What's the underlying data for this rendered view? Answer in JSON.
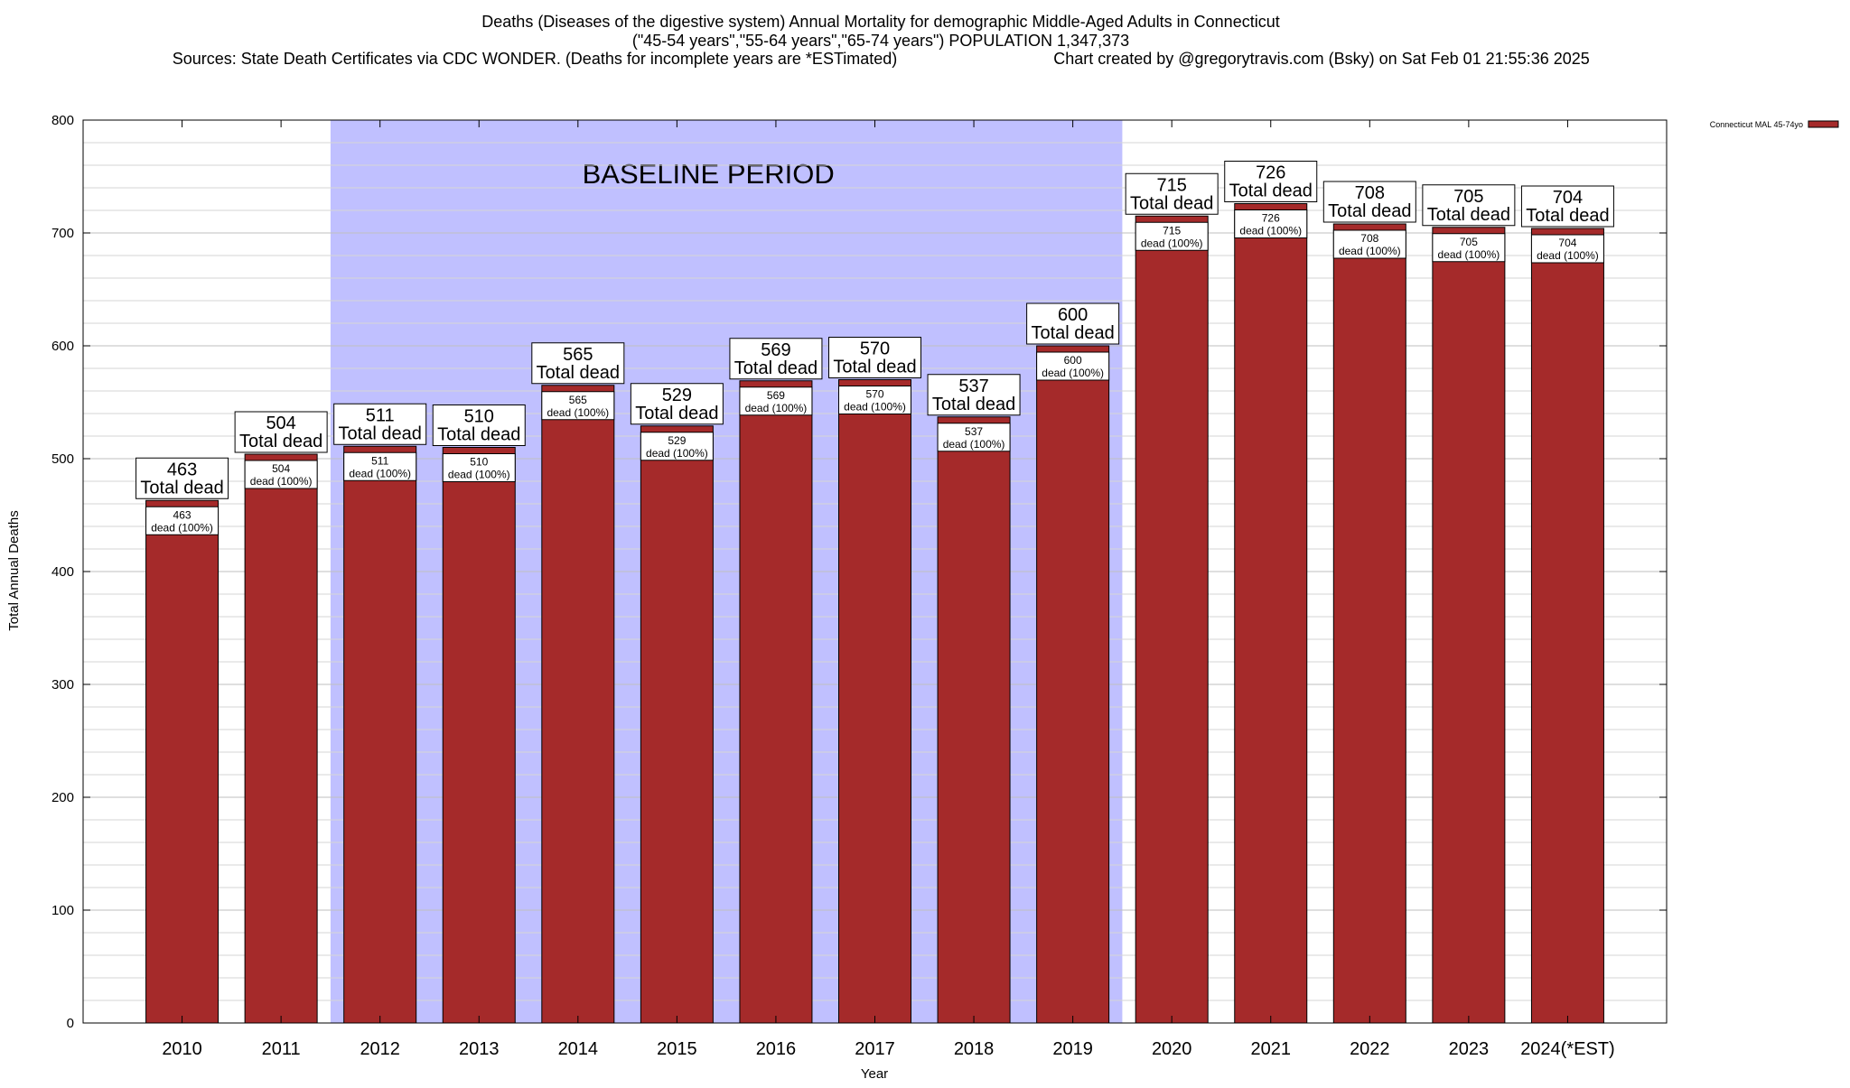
{
  "chart_data": {
    "type": "bar",
    "title_lines": [
      "Deaths (Diseases of the digestive system) Annual Mortality for demographic Middle-Aged Adults in Connecticut",
      "(\"45-54 years\",\"55-64 years\",\"65-74 years\") POPULATION 1,347,373"
    ],
    "sources": "Sources: State Death Certificates via CDC WONDER. (Deaths for incomplete years are *ESTimated)",
    "credit": "Chart created by @gregorytravis.com (Bsky) on Sat Feb 01 21:55:36 2025",
    "xlabel": "Year",
    "ylabel": "Total Annual Deaths",
    "ylim": [
      0,
      800
    ],
    "yticks": [
      0,
      100,
      200,
      300,
      400,
      500,
      600,
      700,
      800
    ],
    "minor_gridlines": true,
    "categories": [
      "2010",
      "2011",
      "2012",
      "2013",
      "2014",
      "2015",
      "2016",
      "2017",
      "2018",
      "2019",
      "2020",
      "2021",
      "2022",
      "2023",
      "2024(*EST)"
    ],
    "series": [
      {
        "name": "Connecticut MAL 45-74yo",
        "color": "#a52a2a",
        "values": [
          463,
          504,
          511,
          510,
          565,
          529,
          569,
          570,
          537,
          600,
          715,
          726,
          708,
          705,
          704
        ]
      }
    ],
    "total_label_suffix": "Total dead",
    "inner_label_suffix": "dead (100%)",
    "baseline": {
      "label": "BASELINE PERIOD",
      "from": "2012",
      "to": "2019",
      "color": "#c0c0ff"
    },
    "legend_position": "top-right"
  }
}
